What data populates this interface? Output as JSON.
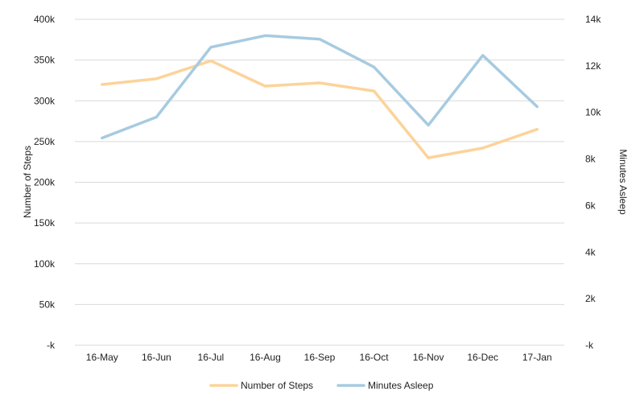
{
  "chart_data": {
    "type": "line",
    "title": "",
    "categories": [
      "16-May",
      "16-Jun",
      "16-Jul",
      "16-Aug",
      "16-Sep",
      "16-Oct",
      "16-Nov",
      "16-Dec",
      "17-Jan"
    ],
    "series": [
      {
        "name": "Number of Steps",
        "axis": "left",
        "color": "#fcd39a",
        "values": [
          320000,
          327000,
          349000,
          318000,
          322000,
          312000,
          230000,
          242000,
          265000
        ]
      },
      {
        "name": "Minutes Asleep",
        "axis": "right",
        "color": "#a7cbe0",
        "values": [
          8900,
          9800,
          12800,
          13300,
          13150,
          11950,
          9450,
          12450,
          10250
        ]
      }
    ],
    "y_left": {
      "label": "Number of Steps",
      "ylim": [
        0,
        400000
      ],
      "ticks": [
        0,
        50000,
        100000,
        150000,
        200000,
        250000,
        300000,
        350000,
        400000
      ],
      "tick_labels": [
        "-k",
        "50k",
        "100k",
        "150k",
        "200k",
        "250k",
        "300k",
        "350k",
        "400k"
      ]
    },
    "y_right": {
      "label": "Minutes Asleep",
      "ylim": [
        0,
        14000
      ],
      "ticks": [
        0,
        2000,
        4000,
        6000,
        8000,
        10000,
        12000,
        14000
      ],
      "tick_labels": [
        "-k",
        "2k",
        "4k",
        "6k",
        "8k",
        "10k",
        "12k",
        "14k"
      ]
    },
    "grid": true,
    "legend": {
      "position": "bottom",
      "entries": [
        "Number of Steps",
        "Minutes Asleep"
      ]
    }
  }
}
